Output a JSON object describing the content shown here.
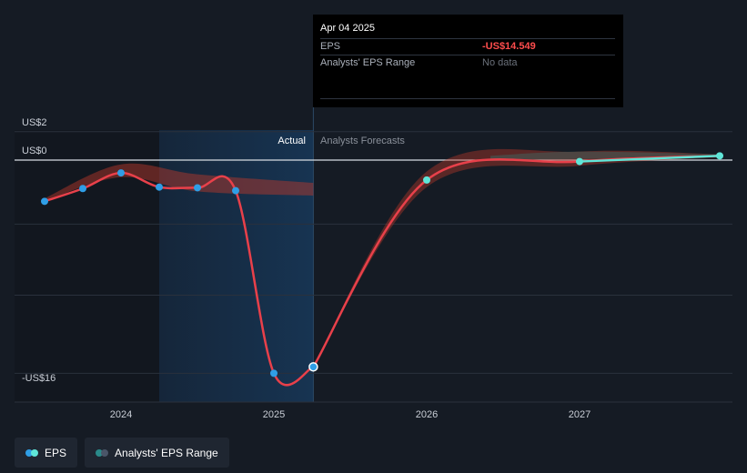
{
  "tooltip": {
    "date": "Apr 04 2025",
    "rows": [
      {
        "label": "EPS",
        "value": "-US$14.549"
      },
      {
        "label": "Analysts' EPS Range",
        "value": "No data"
      }
    ]
  },
  "labels": {
    "actual": "Actual",
    "forecast": "Analysts Forecasts"
  },
  "legend": [
    {
      "label": "EPS",
      "colors": [
        "#2f9ee6",
        "#5fe6d8"
      ]
    },
    {
      "label": "Analysts' EPS Range",
      "colors": [
        "#2a8a8a",
        "#4a5568"
      ]
    }
  ],
  "colors": {
    "eps_line": "#e8404a",
    "actual_dot": "#2f9ee6",
    "forecast_dot": "#5fe6d8",
    "range_band": "#c0392b",
    "forecast_band": "#2aa198"
  },
  "chart_data": {
    "type": "line",
    "ylim": [
      -16.2,
      2.3
    ],
    "xlim": [
      "2023-07",
      "2027-12"
    ],
    "y_ticks": [
      {
        "value": 2,
        "label": "US$2"
      },
      {
        "value": 0,
        "label": "US$0"
      },
      {
        "value": -16,
        "label": "-US$16"
      }
    ],
    "x_ticks": [
      {
        "value": "2024",
        "label": "2024"
      },
      {
        "value": "2025",
        "label": "2025"
      },
      {
        "value": "2026",
        "label": "2026"
      },
      {
        "value": "2027",
        "label": "2027"
      }
    ],
    "actual_period": {
      "start": "2024-04",
      "end": "2025-04-04"
    },
    "series": [
      {
        "points": [
          {
            "x": "2023-07",
            "y": -2.9
          },
          {
            "x": "2023-10",
            "y": -2.0
          },
          {
            "x": "2024-01",
            "y": -0.9
          },
          {
            "x": "2024-04",
            "y": -1.9
          },
          {
            "x": "2024-07",
            "y": -1.95
          },
          {
            "x": "2024-10",
            "y": -2.15
          },
          {
            "x": "2025-01",
            "y": -15.0
          },
          {
            "x": "2025-04-04",
            "y": -14.549
          }
        ]
      },
      {
        "points": [
          {
            "x": "2025-04-04",
            "y": -14.549
          },
          {
            "x": "2026-01",
            "y": -1.4
          },
          {
            "x": "2027-01",
            "y": -0.1
          },
          {
            "x": "2027-12",
            "y": 0.3
          }
        ]
      }
    ],
    "range_bands": [
      {
        "upper": [
          {
            "x": "2023-07",
            "y": -2.7
          },
          {
            "x": "2024-01",
            "y": -0.3
          },
          {
            "x": "2024-07",
            "y": -1.0
          },
          {
            "x": "2025-04-04",
            "y": -1.6
          }
        ],
        "lower": [
          {
            "x": "2023-07",
            "y": -2.9
          },
          {
            "x": "2024-01",
            "y": -1.2
          },
          {
            "x": "2024-07",
            "y": -2.2
          },
          {
            "x": "2025-04-04",
            "y": -2.5
          }
        ]
      },
      {
        "upper": [
          {
            "x": "2025-04-04",
            "y": -14.549
          },
          {
            "x": "2026-01",
            "y": -0.8
          },
          {
            "x": "2027-01",
            "y": 0.6
          },
          {
            "x": "2027-12",
            "y": 0.4
          }
        ],
        "lower": [
          {
            "x": "2025-04-04",
            "y": -14.549
          },
          {
            "x": "2026-01",
            "y": -1.9
          },
          {
            "x": "2027-01",
            "y": -0.4
          },
          {
            "x": "2027-12",
            "y": 0.2
          }
        ]
      }
    ],
    "marker": {
      "x": "2025-04-04",
      "y": -14.549
    }
  }
}
